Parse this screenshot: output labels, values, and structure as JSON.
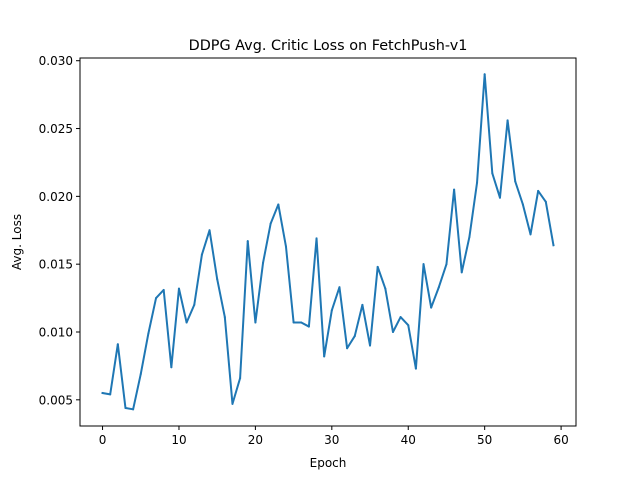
{
  "chart_data": {
    "type": "line",
    "title": "DDPG Avg. Critic Loss on FetchPush-v1",
    "xlabel": "Epoch",
    "ylabel": "Avg. Loss",
    "xlim": [
      -2.95,
      61.95
    ],
    "ylim": [
      0.00307,
      0.0302
    ],
    "xticks": [
      0,
      10,
      20,
      30,
      40,
      50,
      60
    ],
    "yticks": [
      0.005,
      0.01,
      0.015,
      0.02,
      0.025,
      0.03
    ],
    "xtick_labels": [
      "0",
      "10",
      "20",
      "30",
      "40",
      "50",
      "60"
    ],
    "ytick_labels": [
      "0.005",
      "0.010",
      "0.015",
      "0.020",
      "0.025",
      "0.030"
    ],
    "grid": false,
    "series": [
      {
        "color": "#1f77b4",
        "x": [
          0,
          1,
          2,
          3,
          4,
          5,
          6,
          7,
          8,
          9,
          10,
          11,
          12,
          13,
          14,
          15,
          16,
          17,
          18,
          19,
          20,
          21,
          22,
          23,
          24,
          25,
          26,
          27,
          28,
          29,
          30,
          31,
          32,
          33,
          34,
          35,
          36,
          37,
          38,
          39,
          40,
          41,
          42,
          43,
          44,
          45,
          46,
          47,
          48,
          49,
          50,
          51,
          52,
          53,
          54,
          55,
          56,
          57,
          58,
          59
        ],
        "values": [
          0.0055,
          0.0054,
          0.0091,
          0.0044,
          0.0043,
          0.0069,
          0.0099,
          0.0125,
          0.0131,
          0.0074,
          0.0132,
          0.0107,
          0.012,
          0.0157,
          0.0175,
          0.0139,
          0.0111,
          0.0047,
          0.0066,
          0.0167,
          0.0107,
          0.0151,
          0.018,
          0.0194,
          0.0163,
          0.0107,
          0.0107,
          0.0104,
          0.0169,
          0.0082,
          0.0116,
          0.0133,
          0.0088,
          0.0097,
          0.012,
          0.009,
          0.0148,
          0.0132,
          0.01,
          0.0111,
          0.0105,
          0.0073,
          0.015,
          0.0118,
          0.0133,
          0.015,
          0.0205,
          0.0144,
          0.017,
          0.021,
          0.029,
          0.0217,
          0.0199,
          0.0256,
          0.0211,
          0.0194,
          0.0172,
          0.0204,
          0.0196,
          0.0164
        ]
      }
    ]
  }
}
